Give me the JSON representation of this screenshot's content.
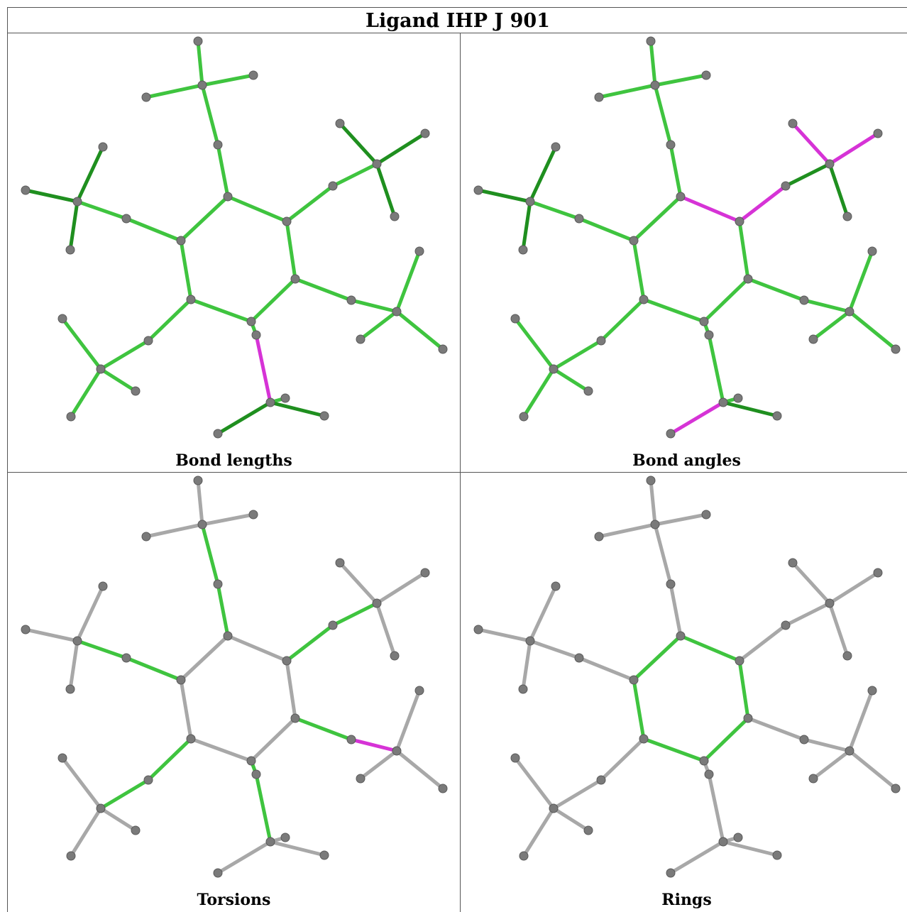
{
  "title": "Ligand IHP J 901",
  "panels": [
    {
      "caption": "Bond lengths"
    },
    {
      "caption": "Bond angles"
    },
    {
      "caption": "Torsions"
    },
    {
      "caption": "Rings"
    }
  ],
  "colors": {
    "ok_green": "#3fc43f",
    "dark_green": "#1f8f1f",
    "outlier_magenta": "#d633d6",
    "neutral_gray": "#a8a8a8",
    "atom_gray": "#7a7a7a"
  }
}
